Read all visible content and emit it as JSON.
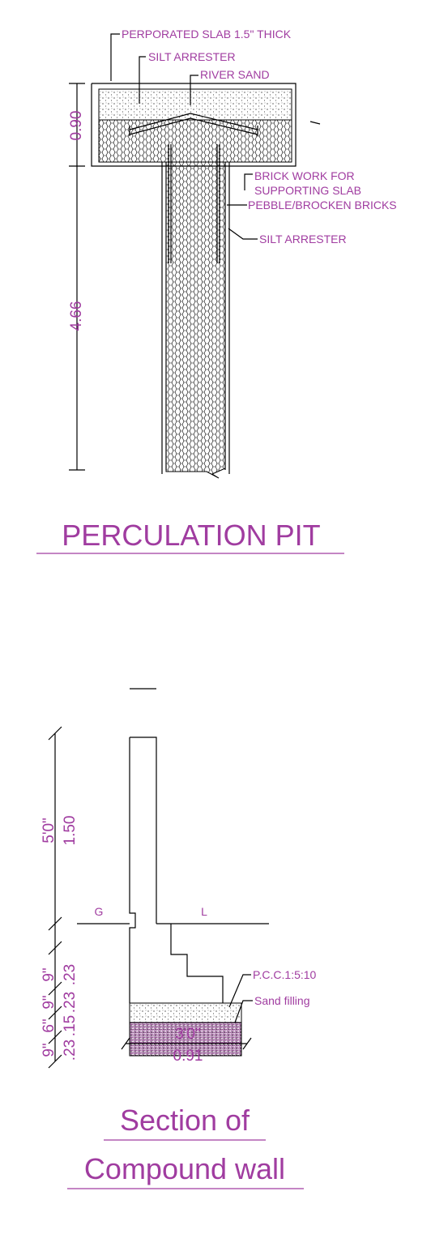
{
  "pit": {
    "labels": [
      "PERPORATED SLAB 1.5\" THICK",
      "SILT ARRESTER",
      "RIVER SAND",
      "BRICK WORK FOR",
      "SUPPORTING SLAB",
      "PEBBLE/BROCKEN BRICKS",
      "SILT ARRESTER"
    ],
    "dimensions": [
      "0.90",
      "4.66"
    ],
    "title": "PERCULATION PIT"
  },
  "section": {
    "dimensions_ft": [
      "5'0\"",
      "9\"",
      "6\"",
      "9\"",
      "9\"",
      "3'0\""
    ],
    "dimensions_m": [
      "1.50",
      ".23",
      ".15",
      ".23",
      ".23",
      "0.91"
    ],
    "ground_marks": [
      "G",
      "L"
    ],
    "labels": [
      "P.C.C.1:5:10",
      "Sand filling"
    ],
    "title": [
      "Section of",
      "Compound wall"
    ]
  }
}
